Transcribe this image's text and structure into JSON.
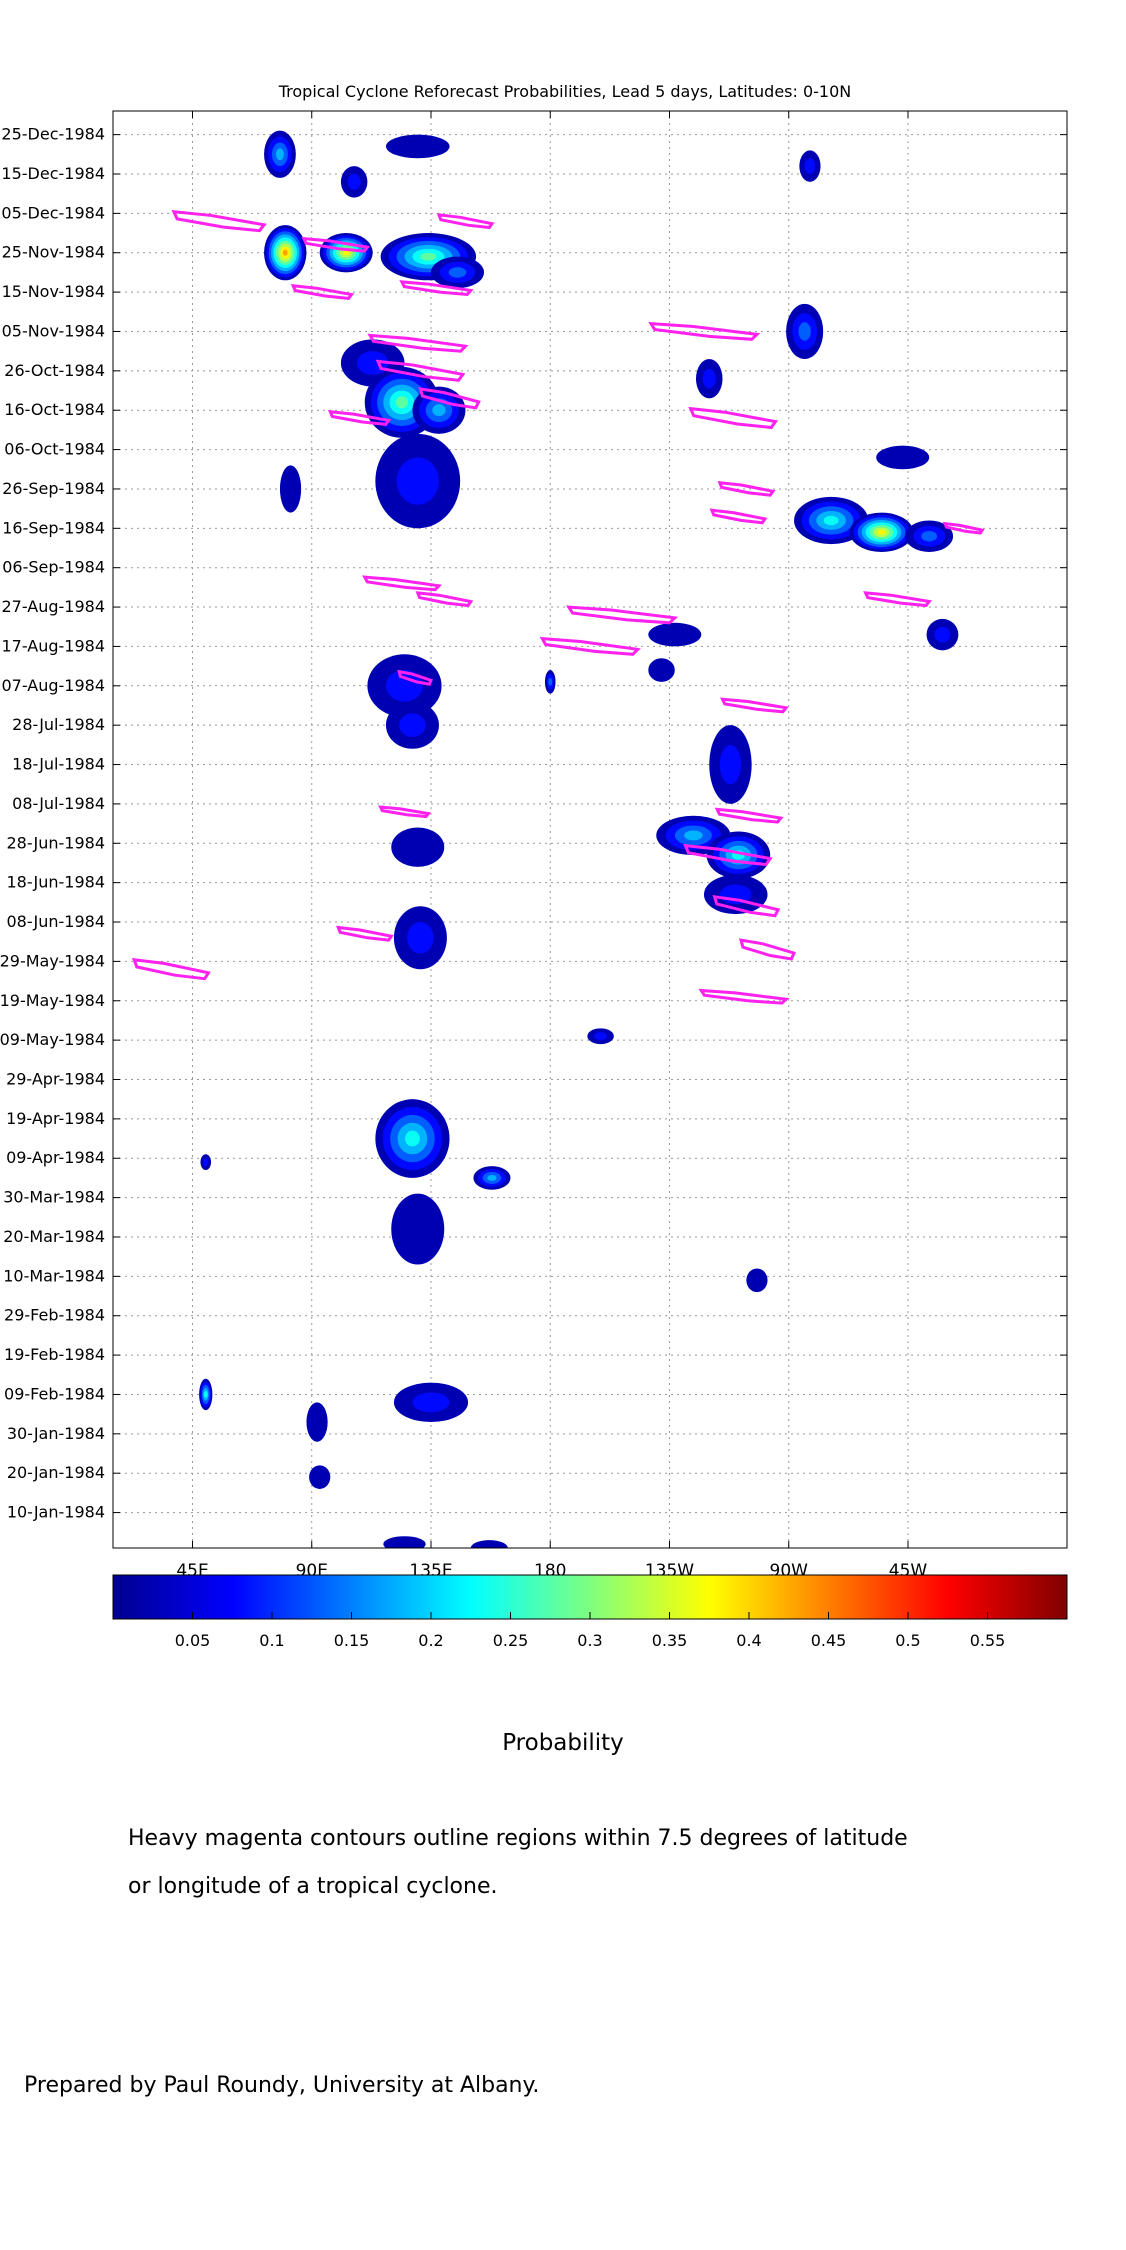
{
  "chart_data": {
    "type": "heatmap",
    "title": "Tropical Cyclone Reforecast Probabilities, Lead 5 days, Latitudes: 0-10N",
    "xlabel": "",
    "ylabel": "",
    "x_axis": {
      "range_lon_east": [
        15,
        375
      ],
      "ticks": [
        {
          "lon": 45,
          "label": "45E"
        },
        {
          "lon": 90,
          "label": "90E"
        },
        {
          "lon": 135,
          "label": "135E"
        },
        {
          "lon": 180,
          "label": "180"
        },
        {
          "lon": 225,
          "label": "135W"
        },
        {
          "lon": 270,
          "label": "90W"
        },
        {
          "lon": 315,
          "label": "45W"
        }
      ]
    },
    "y_axis": {
      "range": [
        "1984-01-01",
        "1984-12-31"
      ],
      "direction": "time increases upward",
      "ticks": [
        {
          "date": "1984-12-25",
          "label": "25-Dec-1984"
        },
        {
          "date": "1984-12-15",
          "label": "15-Dec-1984"
        },
        {
          "date": "1984-12-05",
          "label": "05-Dec-1984"
        },
        {
          "date": "1984-11-25",
          "label": "25-Nov-1984"
        },
        {
          "date": "1984-11-15",
          "label": "15-Nov-1984"
        },
        {
          "date": "1984-11-05",
          "label": "05-Nov-1984"
        },
        {
          "date": "1984-10-26",
          "label": "26-Oct-1984"
        },
        {
          "date": "1984-10-16",
          "label": "16-Oct-1984"
        },
        {
          "date": "1984-10-06",
          "label": "06-Oct-1984"
        },
        {
          "date": "1984-09-26",
          "label": "26-Sep-1984"
        },
        {
          "date": "1984-09-16",
          "label": "16-Sep-1984"
        },
        {
          "date": "1984-09-06",
          "label": "06-Sep-1984"
        },
        {
          "date": "1984-08-27",
          "label": "27-Aug-1984"
        },
        {
          "date": "1984-08-17",
          "label": "17-Aug-1984"
        },
        {
          "date": "1984-08-07",
          "label": "07-Aug-1984"
        },
        {
          "date": "1984-07-28",
          "label": "28-Jul-1984"
        },
        {
          "date": "1984-07-18",
          "label": "18-Jul-1984"
        },
        {
          "date": "1984-07-08",
          "label": "08-Jul-1984"
        },
        {
          "date": "1984-06-28",
          "label": "28-Jun-1984"
        },
        {
          "date": "1984-06-18",
          "label": "18-Jun-1984"
        },
        {
          "date": "1984-06-08",
          "label": "08-Jun-1984"
        },
        {
          "date": "1984-05-29",
          "label": "29-May-1984"
        },
        {
          "date": "1984-05-19",
          "label": "19-May-1984"
        },
        {
          "date": "1984-05-09",
          "label": "09-May-1984"
        },
        {
          "date": "1984-04-29",
          "label": "29-Apr-1984"
        },
        {
          "date": "1984-04-19",
          "label": "19-Apr-1984"
        },
        {
          "date": "1984-04-09",
          "label": "09-Apr-1984"
        },
        {
          "date": "1984-03-30",
          "label": "30-Mar-1984"
        },
        {
          "date": "1984-03-20",
          "label": "20-Mar-1984"
        },
        {
          "date": "1984-03-10",
          "label": "10-Mar-1984"
        },
        {
          "date": "1984-02-29",
          "label": "29-Feb-1984"
        },
        {
          "date": "1984-02-19",
          "label": "19-Feb-1984"
        },
        {
          "date": "1984-02-09",
          "label": "09-Feb-1984"
        },
        {
          "date": "1984-01-30",
          "label": "30-Jan-1984"
        },
        {
          "date": "1984-01-20",
          "label": "20-Jan-1984"
        },
        {
          "date": "1984-01-10",
          "label": "10-Jan-1984"
        }
      ]
    },
    "grid": true,
    "colorbar": {
      "label": "Probability",
      "range": [
        0,
        0.6
      ],
      "tick_values": [
        0.05,
        0.1,
        0.15,
        0.2,
        0.25,
        0.3,
        0.35,
        0.4,
        0.45,
        0.5,
        0.55
      ],
      "tick_labels": [
        "0.05",
        "0.1",
        "0.15",
        "0.2",
        "0.25",
        "0.3",
        "0.35",
        "0.4",
        "0.45",
        "0.5",
        "0.55"
      ],
      "colormap": "jet"
    },
    "probability_blobs": [
      {
        "lon": 78,
        "date": "1984-12-20",
        "dlon": 6,
        "ddays": 6,
        "p": 0.18
      },
      {
        "lon": 106,
        "date": "1984-12-13",
        "dlon": 5,
        "ddays": 4,
        "p": 0.1
      },
      {
        "lon": 130,
        "date": "1984-12-22",
        "dlon": 12,
        "ddays": 3,
        "p": 0.06
      },
      {
        "lon": 80,
        "date": "1984-11-25",
        "dlon": 8,
        "ddays": 7,
        "p": 0.45
      },
      {
        "lon": 103,
        "date": "1984-11-25",
        "dlon": 10,
        "ddays": 5,
        "p": 0.42
      },
      {
        "lon": 134,
        "date": "1984-11-24",
        "dlon": 18,
        "ddays": 6,
        "p": 0.3
      },
      {
        "lon": 145,
        "date": "1984-11-20",
        "dlon": 10,
        "ddays": 4,
        "p": 0.15
      },
      {
        "lon": 113,
        "date": "1984-10-28",
        "dlon": 12,
        "ddays": 6,
        "p": 0.12
      },
      {
        "lon": 124,
        "date": "1984-10-18",
        "dlon": 14,
        "ddays": 9,
        "p": 0.3
      },
      {
        "lon": 138,
        "date": "1984-10-16",
        "dlon": 10,
        "ddays": 6,
        "p": 0.2
      },
      {
        "lon": 130,
        "date": "1984-09-28",
        "dlon": 16,
        "ddays": 12,
        "p": 0.12
      },
      {
        "lon": 82,
        "date": "1984-09-26",
        "dlon": 4,
        "ddays": 6,
        "p": 0.06
      },
      {
        "lon": 125,
        "date": "1984-08-07",
        "dlon": 14,
        "ddays": 8,
        "p": 0.12
      },
      {
        "lon": 128,
        "date": "1984-07-28",
        "dlon": 10,
        "ddays": 6,
        "p": 0.08
      },
      {
        "lon": 130,
        "date": "1984-06-27",
        "dlon": 10,
        "ddays": 5,
        "p": 0.07
      },
      {
        "lon": 131,
        "date": "1984-06-04",
        "dlon": 10,
        "ddays": 8,
        "p": 0.08
      },
      {
        "lon": 128,
        "date": "1984-04-14",
        "dlon": 14,
        "ddays": 10,
        "p": 0.25
      },
      {
        "lon": 158,
        "date": "1984-04-04",
        "dlon": 7,
        "ddays": 3,
        "p": 0.2
      },
      {
        "lon": 130,
        "date": "1984-03-22",
        "dlon": 10,
        "ddays": 9,
        "p": 0.06
      },
      {
        "lon": 135,
        "date": "1984-02-07",
        "dlon": 14,
        "ddays": 5,
        "p": 0.12
      },
      {
        "lon": 50,
        "date": "1984-02-09",
        "dlon": 2.5,
        "ddays": 4,
        "p": 0.25
      },
      {
        "lon": 92,
        "date": "1984-02-02",
        "dlon": 4,
        "ddays": 5,
        "p": 0.06
      },
      {
        "lon": 93,
        "date": "1984-01-19",
        "dlon": 4,
        "ddays": 3,
        "p": 0.07
      },
      {
        "lon": 125,
        "date": "1984-01-02",
        "dlon": 8,
        "ddays": 2,
        "p": 0.06
      },
      {
        "lon": 157,
        "date": "1984-01-01",
        "dlon": 7,
        "ddays": 2,
        "p": 0.07
      },
      {
        "lon": 227,
        "date": "1984-08-20",
        "dlon": 10,
        "ddays": 3,
        "p": 0.06
      },
      {
        "lon": 222,
        "date": "1984-08-11",
        "dlon": 5,
        "ddays": 3,
        "p": 0.06
      },
      {
        "lon": 248,
        "date": "1984-07-18",
        "dlon": 8,
        "ddays": 10,
        "p": 0.1
      },
      {
        "lon": 234,
        "date": "1984-06-30",
        "dlon": 14,
        "ddays": 5,
        "p": 0.2
      },
      {
        "lon": 251,
        "date": "1984-06-25",
        "dlon": 12,
        "ddays": 6,
        "p": 0.25
      },
      {
        "lon": 250,
        "date": "1984-06-15",
        "dlon": 12,
        "ddays": 5,
        "p": 0.12
      },
      {
        "lon": 199,
        "date": "1984-05-10",
        "dlon": 5,
        "ddays": 2,
        "p": 0.08
      },
      {
        "lon": 240,
        "date": "1984-10-24",
        "dlon": 5,
        "ddays": 5,
        "p": 0.08
      },
      {
        "lon": 276,
        "date": "1984-11-05",
        "dlon": 7,
        "ddays": 7,
        "p": 0.16
      },
      {
        "lon": 286,
        "date": "1984-09-18",
        "dlon": 14,
        "ddays": 6,
        "p": 0.25
      },
      {
        "lon": 305,
        "date": "1984-09-15",
        "dlon": 12,
        "ddays": 5,
        "p": 0.4
      },
      {
        "lon": 323,
        "date": "1984-09-14",
        "dlon": 9,
        "ddays": 4,
        "p": 0.16
      },
      {
        "lon": 313,
        "date": "1984-10-04",
        "dlon": 10,
        "ddays": 3,
        "p": 0.07
      },
      {
        "lon": 328,
        "date": "1984-08-20",
        "dlon": 6,
        "ddays": 4,
        "p": 0.1
      },
      {
        "lon": 278,
        "date": "1984-12-17",
        "dlon": 4,
        "ddays": 4,
        "p": 0.1
      },
      {
        "lon": 258,
        "date": "1984-03-09",
        "dlon": 4,
        "ddays": 3,
        "p": 0.06
      },
      {
        "lon": 180,
        "date": "1984-08-08",
        "dlon": 2,
        "ddays": 3,
        "p": 0.15
      },
      {
        "lon": 50,
        "date": "1984-04-08",
        "dlon": 2,
        "ddays": 2,
        "p": 0.12
      }
    ],
    "tc_contours": [
      {
        "lon": 55,
        "date": "1984-12-03",
        "dlon": 17,
        "ddays": 3
      },
      {
        "lon": 99,
        "date": "1984-11-27",
        "dlon": 12,
        "ddays": 2
      },
      {
        "lon": 94,
        "date": "1984-11-15",
        "dlon": 11,
        "ddays": 2
      },
      {
        "lon": 148,
        "date": "1984-12-03",
        "dlon": 10,
        "ddays": 2
      },
      {
        "lon": 137,
        "date": "1984-11-16",
        "dlon": 13,
        "ddays": 2
      },
      {
        "lon": 130,
        "date": "1984-11-02",
        "dlon": 18,
        "ddays": 2.5
      },
      {
        "lon": 131,
        "date": "1984-10-26",
        "dlon": 16,
        "ddays": 3
      },
      {
        "lon": 108,
        "date": "1984-10-14",
        "dlon": 11,
        "ddays": 2
      },
      {
        "lon": 142,
        "date": "1984-10-19",
        "dlon": 11,
        "ddays": 3
      },
      {
        "lon": 124,
        "date": "1984-09-02",
        "dlon": 14,
        "ddays": 2
      },
      {
        "lon": 140,
        "date": "1984-08-29",
        "dlon": 10,
        "ddays": 2
      },
      {
        "lon": 129,
        "date": "1984-08-09",
        "dlon": 6,
        "ddays": 2
      },
      {
        "lon": 125,
        "date": "1984-07-06",
        "dlon": 9,
        "ddays": 1.5
      },
      {
        "lon": 110,
        "date": "1984-06-05",
        "dlon": 10,
        "ddays": 2
      },
      {
        "lon": 37,
        "date": "1984-05-27",
        "dlon": 14,
        "ddays": 3
      },
      {
        "lon": 238,
        "date": "1984-11-05",
        "dlon": 20,
        "ddays": 2.5
      },
      {
        "lon": 249,
        "date": "1984-10-14",
        "dlon": 16,
        "ddays": 3
      },
      {
        "lon": 254,
        "date": "1984-09-26",
        "dlon": 10,
        "ddays": 2
      },
      {
        "lon": 251,
        "date": "1984-09-19",
        "dlon": 10,
        "ddays": 2
      },
      {
        "lon": 207,
        "date": "1984-08-25",
        "dlon": 20,
        "ddays": 2.5
      },
      {
        "lon": 195,
        "date": "1984-08-17",
        "dlon": 18,
        "ddays": 2.5
      },
      {
        "lon": 257,
        "date": "1984-08-02",
        "dlon": 12,
        "ddays": 2
      },
      {
        "lon": 255,
        "date": "1984-07-05",
        "dlon": 12,
        "ddays": 2
      },
      {
        "lon": 247,
        "date": "1984-06-25",
        "dlon": 16,
        "ddays": 3
      },
      {
        "lon": 254,
        "date": "1984-06-12",
        "dlon": 12,
        "ddays": 3
      },
      {
        "lon": 262,
        "date": "1984-06-01",
        "dlon": 10,
        "ddays": 3
      },
      {
        "lon": 253,
        "date": "1984-05-20",
        "dlon": 16,
        "ddays": 2
      },
      {
        "lon": 311,
        "date": "1984-08-29",
        "dlon": 12,
        "ddays": 2
      },
      {
        "lon": 336,
        "date": "1984-09-16",
        "dlon": 7,
        "ddays": 1.5
      }
    ],
    "tc_contour_color": "#ff22ee"
  },
  "colorbar_caption": "Probability",
  "notes": [
    "Heavy magenta contours outline regions within 7.5 degrees of latitude",
    "or longitude of a tropical cyclone."
  ],
  "credit": "Prepared by Paul Roundy, University at Albany."
}
